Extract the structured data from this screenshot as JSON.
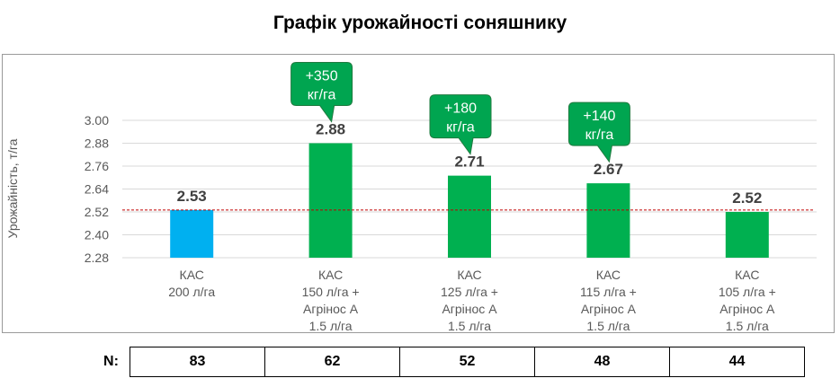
{
  "title": "Графік урожайності соняшнику",
  "chart_data": {
    "type": "bar",
    "title": "Графік урожайності соняшнику",
    "ylabel": "Урожайність,  т/га",
    "xlabel": "",
    "ylim": [
      2.28,
      3.0
    ],
    "yticks": [
      "3.00",
      "2.88",
      "2.76",
      "2.64",
      "2.52",
      "2.40",
      "2.28"
    ],
    "grid": true,
    "reference_line": 2.53,
    "categories": [
      [
        "КАС",
        "200 л/га"
      ],
      [
        "КАС",
        "150 л/га  +",
        "Агрінос А",
        "1.5 л/га"
      ],
      [
        "КАС",
        "125 л/га  +",
        "Агрінос А",
        "1.5 л/га"
      ],
      [
        "КАС",
        "115 л/га  +",
        "Агрінос А",
        "1.5 л/га"
      ],
      [
        "КАС",
        "105 л/га   +",
        "Агрінос А",
        "1.5 л/га"
      ]
    ],
    "values": [
      2.53,
      2.88,
      2.71,
      2.67,
      2.52
    ],
    "value_labels": [
      "2.53",
      "2.88",
      "2.71",
      "2.67",
      "2.52"
    ],
    "bar_colors": [
      "#00B0F0",
      "#00B050",
      "#00B050",
      "#00B050",
      "#00B050"
    ],
    "callouts": [
      {
        "index": 1,
        "lines": [
          "+350",
          "кг/га"
        ]
      },
      {
        "index": 2,
        "lines": [
          "+180",
          "кг/га"
        ]
      },
      {
        "index": 3,
        "lines": [
          "+140",
          "кг/га"
        ]
      }
    ],
    "callout_color": "#00A550"
  },
  "n_table": {
    "label": "N:",
    "values": [
      "83",
      "62",
      "52",
      "48",
      "44"
    ]
  },
  "colors": {
    "reference_line": "#C00000",
    "grid": "#d9d9d9"
  }
}
